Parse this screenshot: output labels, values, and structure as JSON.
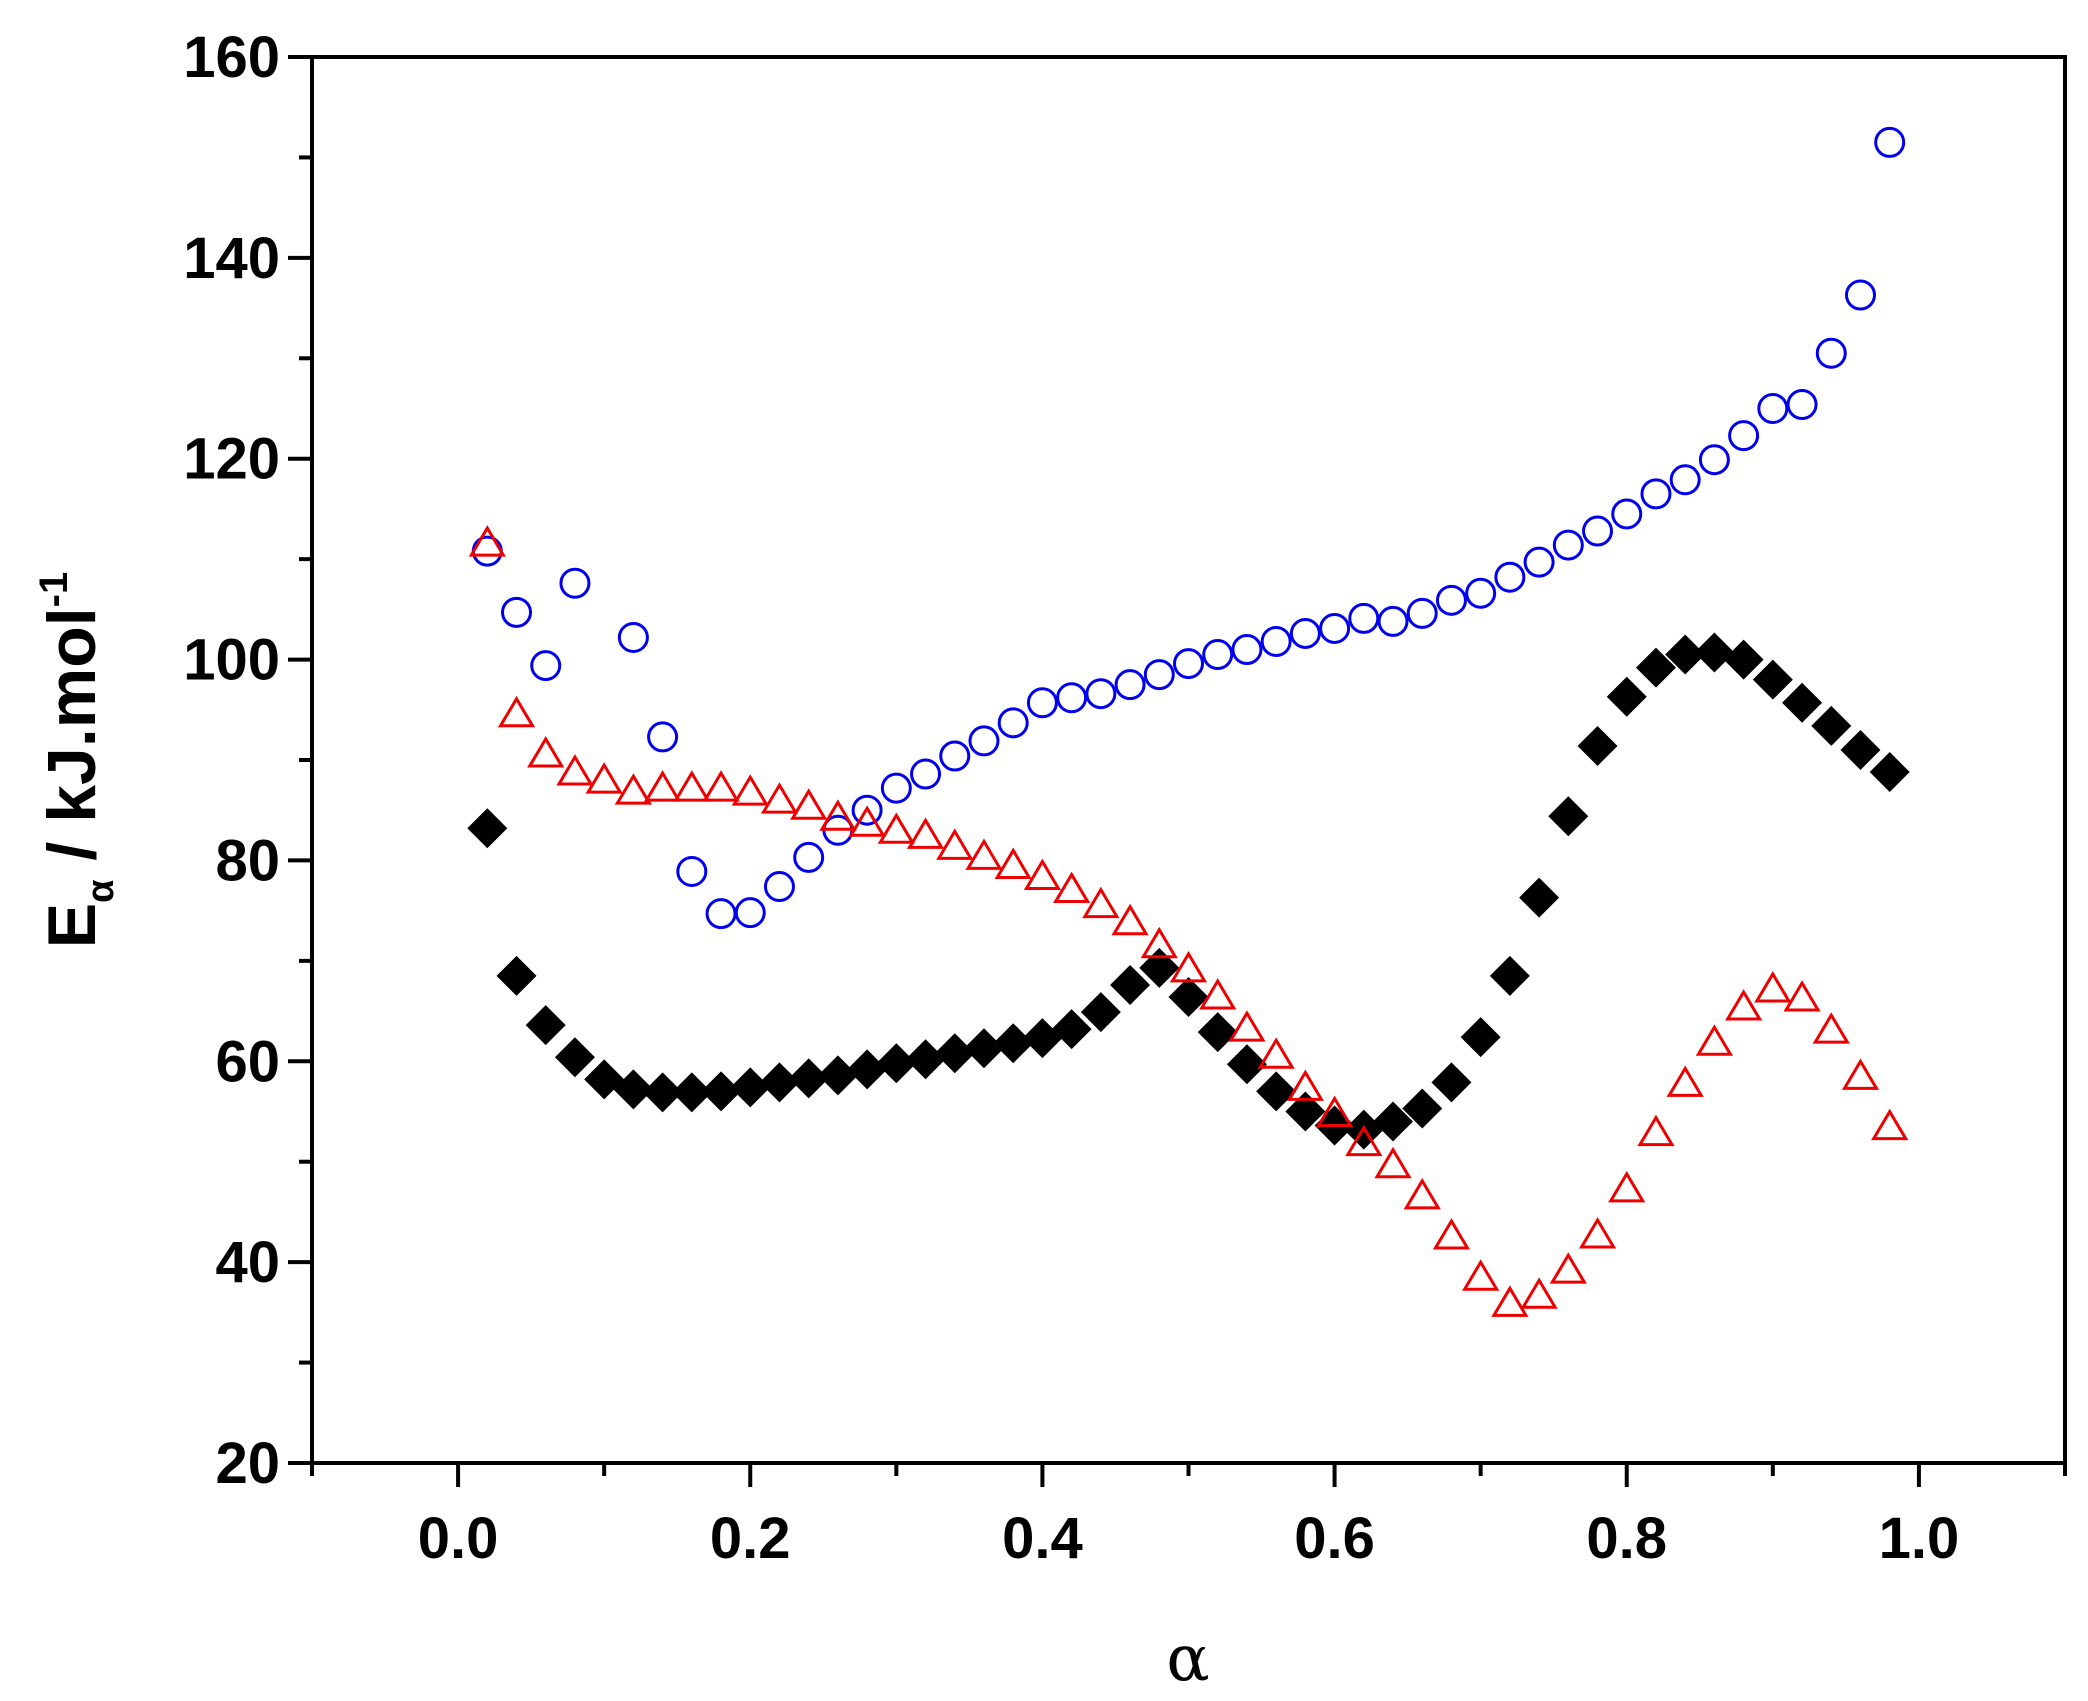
{
  "chart_data": {
    "type": "scatter",
    "title": "",
    "xlabel": "α",
    "ylabel": {
      "main": "E",
      "subscript": "α",
      "unit": " / kJ.mol",
      "superscript": "-1"
    },
    "xlim": [
      -0.1,
      1.1
    ],
    "ylim": [
      20,
      160
    ],
    "x_ticks": [
      0.0,
      0.2,
      0.4,
      0.6,
      0.8,
      1.0
    ],
    "x_tick_labels": [
      "0.0",
      "0.2",
      "0.4",
      "0.6",
      "0.8",
      "1.0"
    ],
    "y_ticks": [
      20,
      40,
      60,
      80,
      100,
      120,
      140,
      160
    ],
    "y_tick_labels": [
      "20",
      "40",
      "60",
      "80",
      "100",
      "120",
      "140",
      "160"
    ],
    "grid": false,
    "legend": "none",
    "series": [
      {
        "name": "black-diamonds",
        "marker": "diamond-filled",
        "color": "#000000",
        "x": [
          0.02,
          0.04,
          0.06,
          0.08,
          0.1,
          0.12,
          0.14,
          0.16,
          0.18,
          0.2,
          0.22,
          0.24,
          0.26,
          0.28,
          0.3,
          0.32,
          0.34,
          0.36,
          0.38,
          0.4,
          0.42,
          0.44,
          0.46,
          0.48,
          0.5,
          0.52,
          0.54,
          0.56,
          0.58,
          0.6,
          0.62,
          0.64,
          0.66,
          0.68,
          0.7,
          0.72,
          0.74,
          0.76,
          0.78,
          0.8,
          0.82,
          0.84,
          0.86,
          0.88,
          0.9,
          0.92,
          0.94,
          0.96,
          0.98
        ],
        "y": [
          83.2,
          68.5,
          63.6,
          60.4,
          58.2,
          57.2,
          56.9,
          56.9,
          57.0,
          57.4,
          57.9,
          58.3,
          58.6,
          59.2,
          59.8,
          60.2,
          60.8,
          61.3,
          61.8,
          62.3,
          63.2,
          64.9,
          67.6,
          69.3,
          66.4,
          62.9,
          59.7,
          57.0,
          55.0,
          53.6,
          53.2,
          54.0,
          55.3,
          57.9,
          62.4,
          68.5,
          76.3,
          84.4,
          91.4,
          96.3,
          99.2,
          100.5,
          100.7,
          100.0,
          98.0,
          95.7,
          93.4,
          91.0,
          88.8
        ]
      },
      {
        "name": "blue-circles",
        "marker": "circle-open",
        "color": "#0000ee",
        "x": [
          0.02,
          0.04,
          0.06,
          0.08,
          0.12,
          0.14,
          0.16,
          0.18,
          0.2,
          0.22,
          0.24,
          0.26,
          0.28,
          0.3,
          0.32,
          0.34,
          0.36,
          0.38,
          0.4,
          0.42,
          0.44,
          0.46,
          0.48,
          0.5,
          0.52,
          0.54,
          0.56,
          0.58,
          0.6,
          0.62,
          0.64,
          0.66,
          0.68,
          0.7,
          0.72,
          0.74,
          0.76,
          0.78,
          0.8,
          0.82,
          0.84,
          0.86,
          0.88,
          0.9,
          0.92,
          0.94,
          0.96,
          0.98
        ],
        "y": [
          110.8,
          104.7,
          99.4,
          107.6,
          102.2,
          92.3,
          78.9,
          74.7,
          74.8,
          77.4,
          80.3,
          83.0,
          85.0,
          87.2,
          88.6,
          90.4,
          91.9,
          93.7,
          95.7,
          96.2,
          96.6,
          97.5,
          98.5,
          99.6,
          100.5,
          101.0,
          101.8,
          102.6,
          103.1,
          104.1,
          103.8,
          104.6,
          105.9,
          106.6,
          108.2,
          109.7,
          111.4,
          112.8,
          114.5,
          116.5,
          117.9,
          119.9,
          122.3,
          125.0,
          125.4,
          130.5,
          136.3,
          151.5
        ]
      },
      {
        "name": "red-triangles",
        "marker": "triangle-open",
        "color": "#ee0000",
        "x": [
          0.02,
          0.04,
          0.06,
          0.08,
          0.1,
          0.12,
          0.14,
          0.16,
          0.18,
          0.2,
          0.22,
          0.24,
          0.26,
          0.28,
          0.3,
          0.32,
          0.34,
          0.36,
          0.38,
          0.4,
          0.42,
          0.44,
          0.46,
          0.48,
          0.5,
          0.52,
          0.54,
          0.56,
          0.58,
          0.6,
          0.62,
          0.64,
          0.66,
          0.68,
          0.7,
          0.72,
          0.74,
          0.76,
          0.78,
          0.8,
          0.82,
          0.84,
          0.86,
          0.88,
          0.9,
          0.92,
          0.94,
          0.96,
          0.98
        ],
        "y": [
          111.6,
          94.6,
          90.6,
          88.8,
          88.0,
          86.9,
          87.2,
          87.2,
          87.2,
          86.8,
          86.0,
          85.4,
          84.3,
          83.7,
          83.0,
          82.5,
          81.4,
          80.4,
          79.5,
          78.4,
          77.1,
          75.6,
          73.9,
          71.6,
          69.2,
          66.5,
          63.3,
          60.6,
          57.4,
          54.8,
          51.9,
          49.7,
          46.6,
          42.6,
          38.5,
          35.9,
          36.7,
          39.2,
          42.7,
          47.3,
          52.9,
          57.8,
          61.9,
          65.4,
          67.2,
          66.3,
          63.1,
          58.5,
          53.5
        ]
      }
    ]
  }
}
